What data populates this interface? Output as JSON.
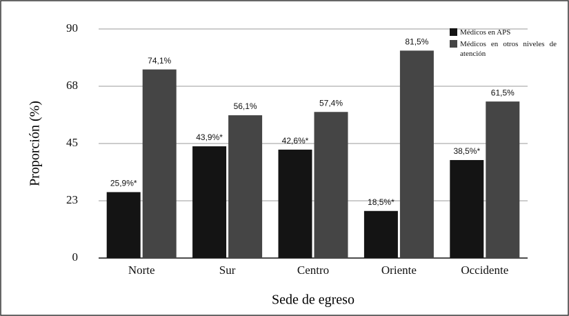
{
  "chart_data": {
    "type": "bar",
    "y_label": "Proporción (%)",
    "x_label": "Sede de egreso",
    "categories": [
      "Norte",
      "Sur",
      "Centro",
      "Oriente",
      "Occidente"
    ],
    "series": [
      {
        "name": "Médicos en APS",
        "color": "#141414",
        "values": [
          25.9,
          43.9,
          42.6,
          18.5,
          38.5
        ],
        "value_labels": [
          "25,9%*",
          "43,9%*",
          "42,6%*",
          "18,5%*",
          "38,5%*"
        ]
      },
      {
        "name": "Médicos en otros niveles de atención",
        "color": "#454545",
        "values": [
          74.1,
          56.1,
          57.4,
          81.5,
          61.5
        ],
        "value_labels": [
          "74,1%",
          "56,1%",
          "57,4%",
          "81,5%",
          "61,5%"
        ]
      }
    ],
    "ylim": [
      0,
      90
    ],
    "yticks": [
      0,
      {
        "value": 22.5,
        "label": "23"
      },
      45,
      {
        "value": 67.5,
        "label": "68"
      },
      90
    ],
    "grid": true,
    "legend": "top-right"
  }
}
